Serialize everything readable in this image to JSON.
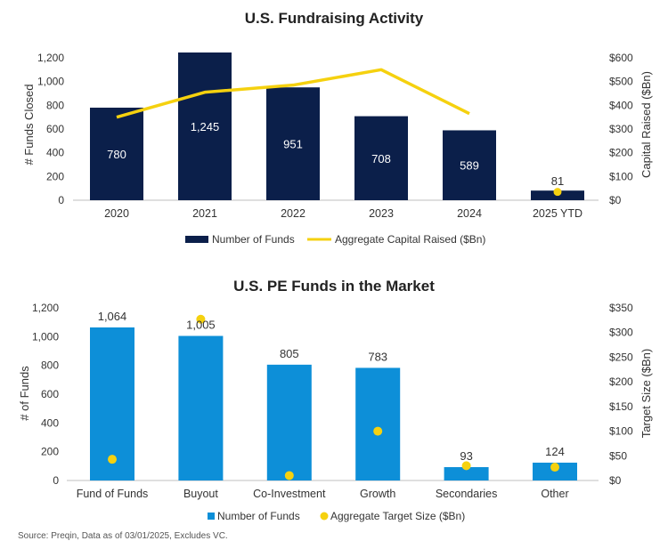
{
  "chart_data": [
    {
      "type": "bar",
      "title": "U.S. Fundraising Activity",
      "categories": [
        "2020",
        "2021",
        "2022",
        "2023",
        "2024",
        "2025 YTD"
      ],
      "ylabel": "# Funds Closed",
      "y2label": "Capital Raised ($Bn)",
      "ylim": [
        0,
        1200
      ],
      "y2lim": [
        0,
        600
      ],
      "yticks": [
        "0",
        "200",
        "400",
        "600",
        "800",
        "1,000",
        "1,200"
      ],
      "y2ticks": [
        "$0",
        "$100",
        "$200",
        "$300",
        "$400",
        "$500",
        "$600"
      ],
      "series": [
        {
          "name": "Number of Funds",
          "kind": "bar",
          "color": "#0b1f4a",
          "values": [
            780,
            1245,
            951,
            708,
            589,
            81
          ],
          "labels": [
            "780",
            "1,245",
            "951",
            "708",
            "589",
            "81"
          ]
        },
        {
          "name": "Aggregate Capital Raised ($Bn)",
          "kind": "line",
          "color": "#f5d10f",
          "values": [
            350,
            455,
            485,
            550,
            365,
            35
          ]
        }
      ],
      "legend": "bottom"
    },
    {
      "type": "bar",
      "title": "U.S. PE Funds in the Market",
      "categories": [
        "Fund of Funds",
        "Buyout",
        "Co-Investment",
        "Growth",
        "Secondaries",
        "Other"
      ],
      "ylabel": "# of Funds",
      "y2label": "Target Size ($Bn)",
      "ylim": [
        0,
        1200
      ],
      "y2lim": [
        0,
        350
      ],
      "yticks": [
        "0",
        "200",
        "400",
        "600",
        "800",
        "1,000",
        "1,200"
      ],
      "y2ticks": [
        "$0",
        "$50",
        "$100",
        "$150",
        "$200",
        "$250",
        "$300",
        "$350"
      ],
      "series": [
        {
          "name": "Number of Funds",
          "kind": "bar",
          "color": "#0d8fd8",
          "values": [
            1064,
            1005,
            805,
            783,
            93,
            124
          ],
          "labels": [
            "1,064",
            "1,005",
            "805",
            "783",
            "93",
            "124"
          ]
        },
        {
          "name": "Aggregate Target Size ($Bn)",
          "kind": "scatter",
          "color": "#f5d10f",
          "values": [
            43,
            327,
            10,
            100,
            30,
            27
          ]
        }
      ],
      "legend": "bottom"
    }
  ],
  "footer": {
    "source": "Source: Preqin, Data as of 03/01/2025, Excludes VC."
  }
}
